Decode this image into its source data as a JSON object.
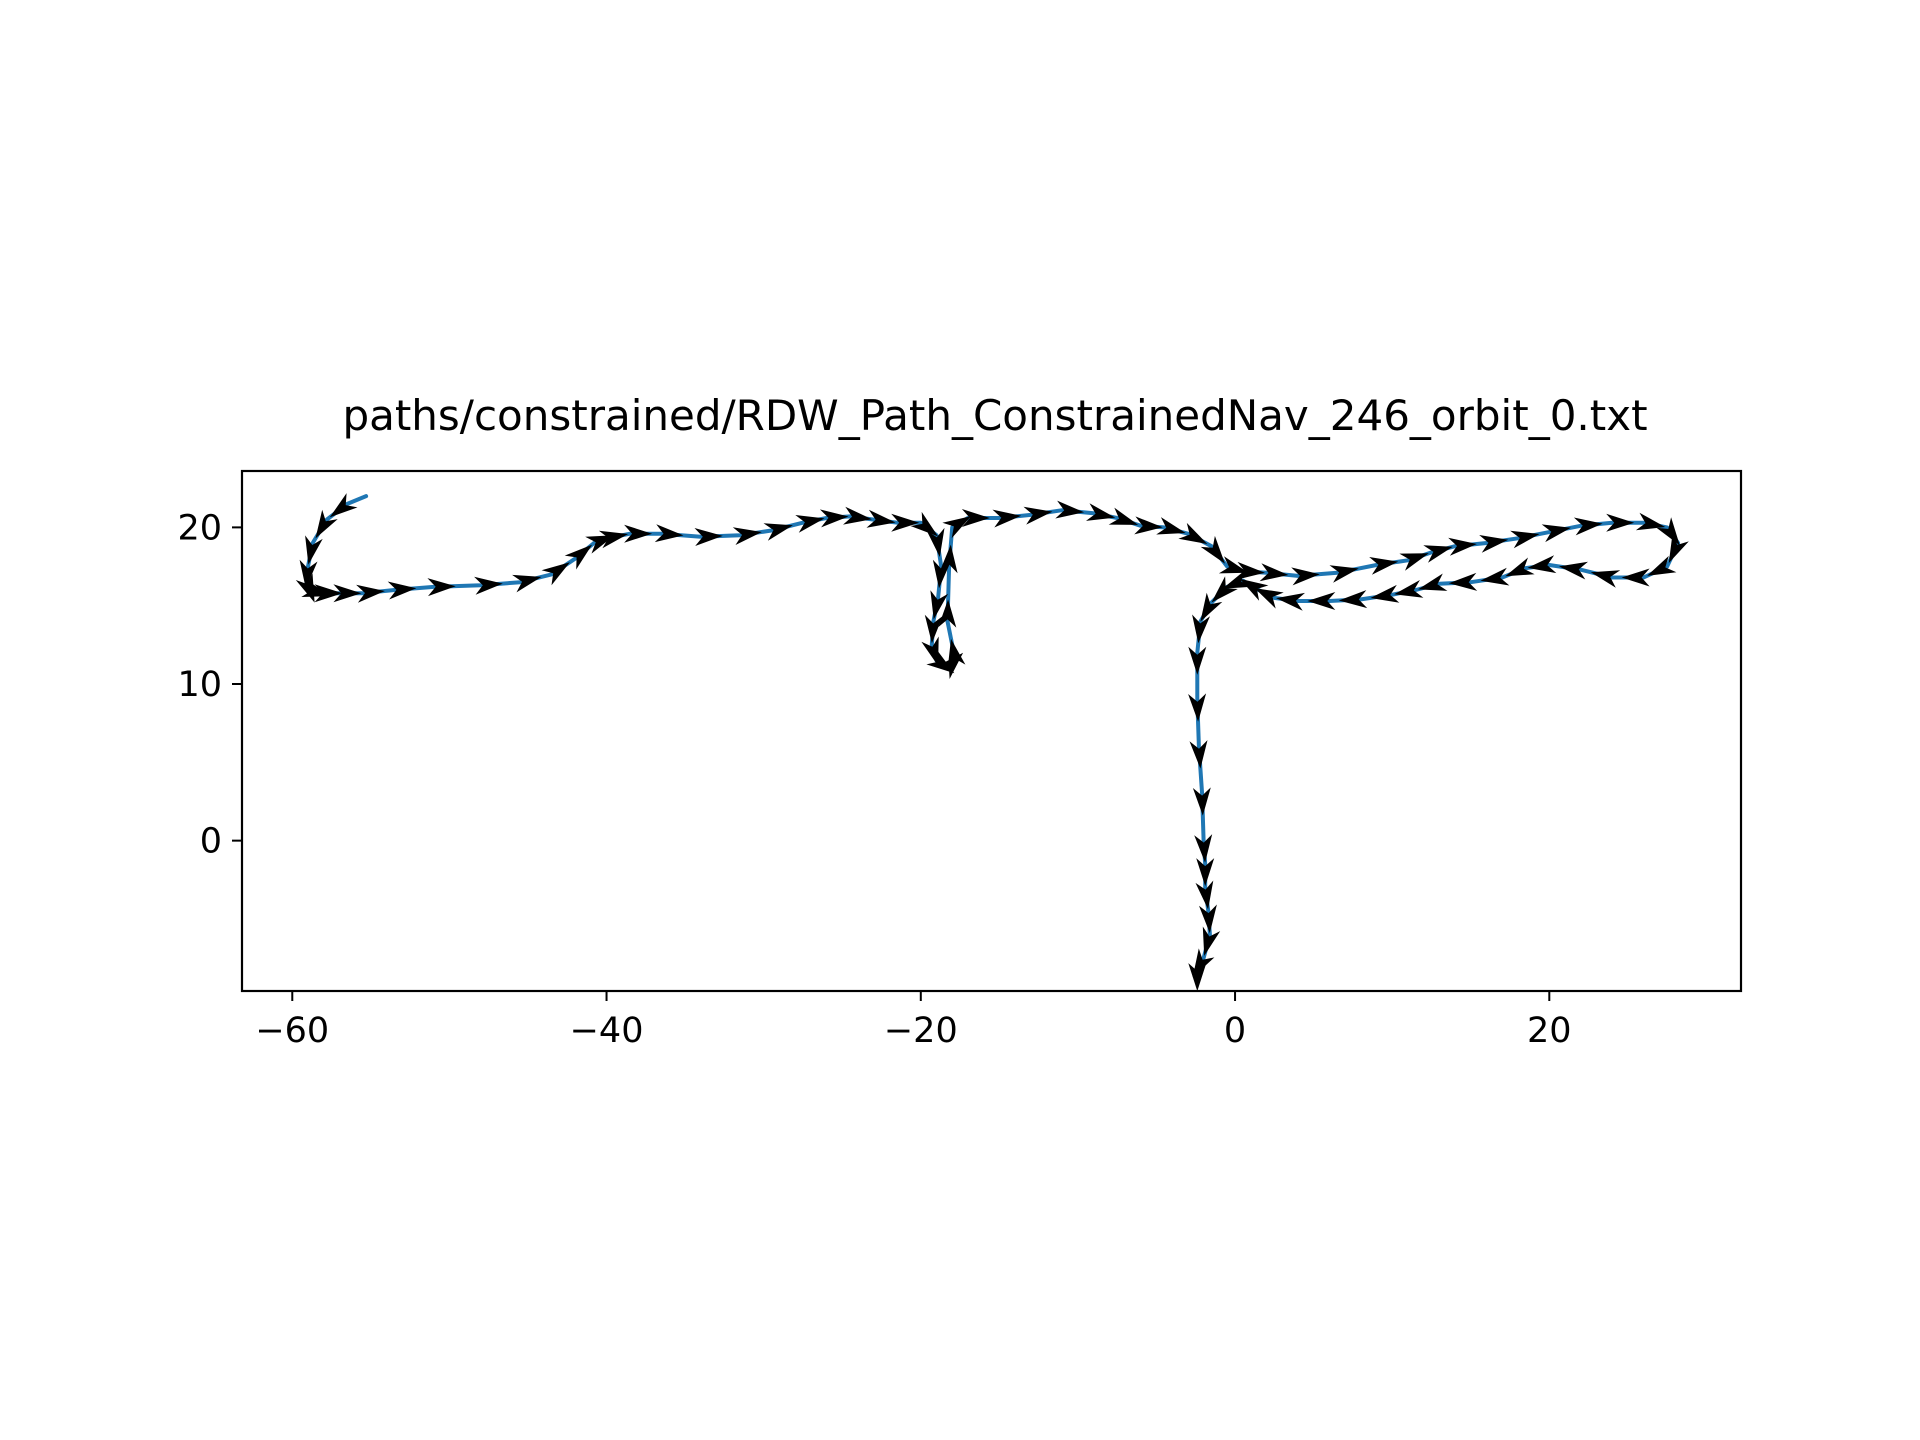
{
  "chart_data": {
    "type": "line",
    "title": "paths/constrained/RDW_Path_ConstrainedNav_246_orbit_0.txt",
    "xlabel": "",
    "ylabel": "",
    "xlim": [
      -63.2,
      32.2
    ],
    "ylim": [
      -9.6,
      23.6
    ],
    "xticks": [
      -60,
      -40,
      -20,
      0,
      20
    ],
    "xtick_labels": [
      "−60",
      "−40",
      "−20",
      "0",
      "20"
    ],
    "yticks": [
      0,
      10,
      20
    ],
    "ytick_labels": [
      "0",
      "10",
      "20"
    ],
    "grid": false,
    "legend": "none",
    "colors": {
      "path": "#1f77b4",
      "arrows": "#000000",
      "axes": "#000000"
    },
    "series": [
      {
        "x": [
          -55.3,
          -56.5,
          -57.8,
          -58.7,
          -59.0,
          -59.1,
          -58.9,
          -58.2,
          -57.0,
          -55.5,
          -53.5,
          -51.0,
          -48.0,
          -45.5,
          -43.5,
          -42.0,
          -40.8,
          -40.0,
          -38.5,
          -36.5,
          -34.0,
          -31.5,
          -29.5,
          -27.5,
          -26.0,
          -24.5,
          -23.0,
          -21.5,
          -20.0,
          -19.0,
          -18.7,
          -18.9,
          -19.2,
          -19.3,
          -19.0,
          -18.3,
          -17.8,
          -18.3,
          -18.2,
          -18.0,
          -17.0,
          -15.0,
          -13.0,
          -11.0,
          -9.0,
          -7.5,
          -6.0,
          -4.5,
          -3.0,
          -1.5,
          -0.5,
          0.5,
          2.0,
          4.0,
          6.5,
          9.0,
          11.0,
          12.5,
          14.0,
          16.0,
          18.0,
          20.0,
          22.0,
          24.0,
          26.0,
          27.5,
          28.2,
          27.5,
          26.0,
          24.0,
          22.0,
          20.0,
          18.5,
          17.0,
          15.0,
          13.0,
          11.5,
          10.0,
          8.0,
          6.0,
          4.0,
          2.5,
          1.5,
          0.5,
          -0.5,
          -1.5,
          -2.2,
          -2.4,
          -2.4,
          -2.3,
          -2.1,
          -2.0,
          -1.9,
          -1.9,
          -1.7,
          -1.6,
          -2.0,
          -2.4,
          -2.4
        ],
        "y": [
          22.0,
          21.5,
          20.5,
          19.0,
          17.5,
          16.5,
          16.0,
          15.8,
          15.8,
          15.8,
          16.0,
          16.2,
          16.3,
          16.5,
          17.0,
          18.0,
          19.0,
          19.3,
          19.6,
          19.6,
          19.4,
          19.5,
          19.8,
          20.3,
          20.6,
          20.7,
          20.5,
          20.3,
          20.3,
          19.5,
          17.5,
          15.5,
          14.0,
          12.5,
          11.5,
          11.0,
          11.5,
          14.0,
          17.5,
          20.0,
          20.6,
          20.6,
          20.8,
          21.1,
          20.9,
          20.6,
          20.1,
          20.0,
          19.6,
          18.8,
          17.5,
          17.2,
          17.1,
          16.9,
          17.1,
          17.6,
          17.9,
          18.4,
          18.8,
          19.0,
          19.3,
          19.7,
          20.1,
          20.3,
          20.3,
          20.0,
          19.0,
          17.5,
          16.8,
          16.8,
          17.3,
          17.6,
          17.4,
          16.8,
          16.5,
          16.4,
          16.0,
          15.7,
          15.4,
          15.3,
          15.3,
          15.5,
          16.0,
          16.6,
          16.2,
          15.2,
          14.0,
          12.0,
          9.0,
          6.0,
          3.0,
          0.0,
          -1.5,
          -3.0,
          -4.5,
          -6.0,
          -7.5,
          -8.2,
          -8.3
        ]
      }
    ]
  }
}
